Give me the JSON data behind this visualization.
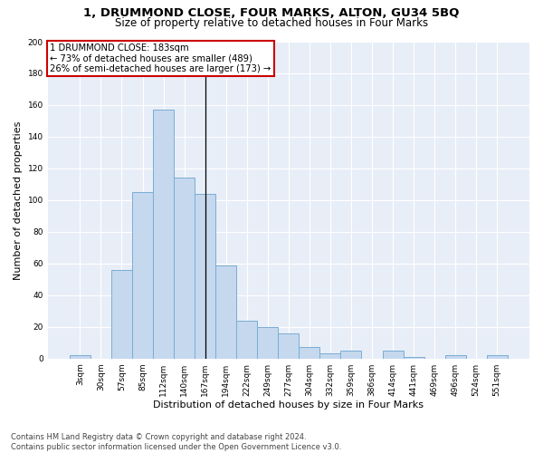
{
  "title": "1, DRUMMOND CLOSE, FOUR MARKS, ALTON, GU34 5BQ",
  "subtitle": "Size of property relative to detached houses in Four Marks",
  "xlabel": "Distribution of detached houses by size in Four Marks",
  "ylabel": "Number of detached properties",
  "bar_color": "#c5d8ee",
  "bar_edge_color": "#7aadd4",
  "background_color": "#e8eef7",
  "categories": [
    "3sqm",
    "30sqm",
    "57sqm",
    "85sqm",
    "112sqm",
    "140sqm",
    "167sqm",
    "194sqm",
    "222sqm",
    "249sqm",
    "277sqm",
    "304sqm",
    "332sqm",
    "359sqm",
    "386sqm",
    "414sqm",
    "441sqm",
    "469sqm",
    "496sqm",
    "524sqm",
    "551sqm"
  ],
  "values": [
    2,
    0,
    56,
    105,
    157,
    114,
    104,
    59,
    24,
    20,
    16,
    7,
    3,
    5,
    0,
    5,
    1,
    0,
    2,
    0,
    2
  ],
  "property_label": "1 DRUMMOND CLOSE: 183sqm",
  "annotation_line1": "← 73% of detached houses are smaller (489)",
  "annotation_line2": "26% of semi-detached houses are larger (173) →",
  "annotation_box_color": "#cc0000",
  "vline_x_index": 6.0,
  "ylim": [
    0,
    200
  ],
  "yticks": [
    0,
    20,
    40,
    60,
    80,
    100,
    120,
    140,
    160,
    180,
    200
  ],
  "footer": "Contains HM Land Registry data © Crown copyright and database right 2024.\nContains public sector information licensed under the Open Government Licence v3.0.",
  "title_fontsize": 9.5,
  "subtitle_fontsize": 8.5,
  "xlabel_fontsize": 8,
  "ylabel_fontsize": 8,
  "tick_fontsize": 6.5,
  "annot_fontsize": 7.2,
  "footer_fontsize": 6
}
